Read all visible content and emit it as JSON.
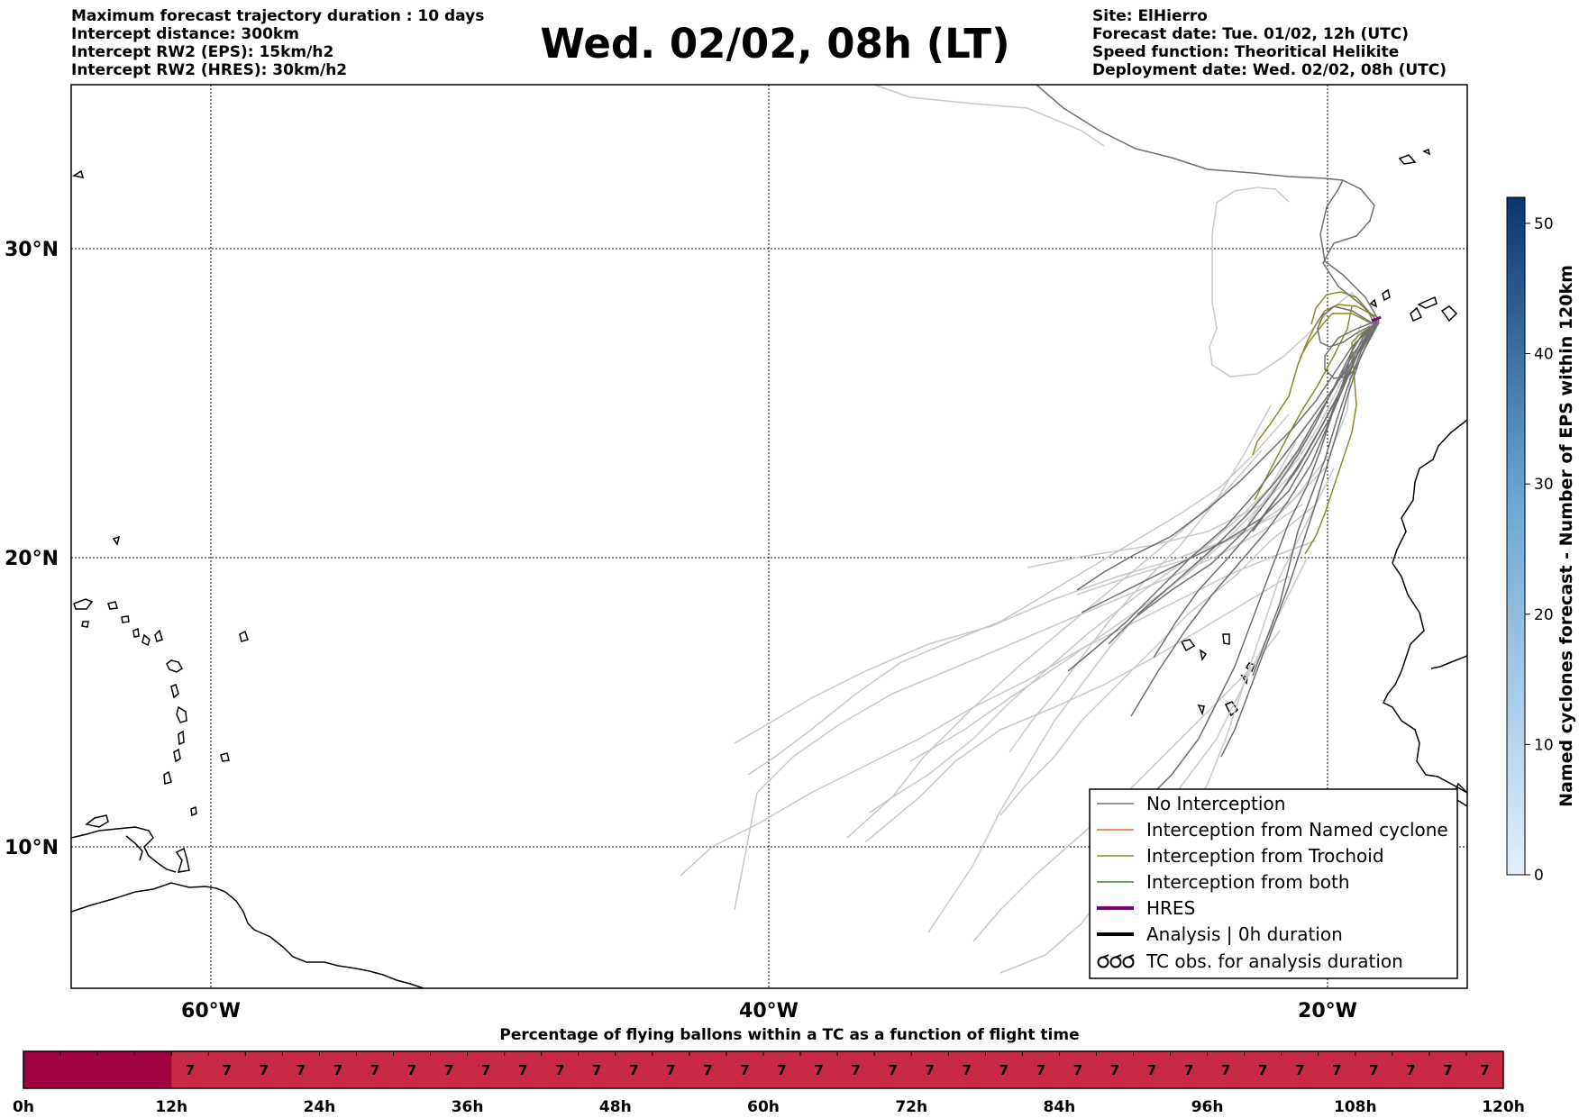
{
  "header": {
    "title": "Wed. 02/02, 08h (LT)",
    "left_lines": [
      "Maximum forecast trajectory duration : 10 days",
      "Intercept distance: 300km",
      "Intercept RW2 (EPS):  15km/h2",
      "Intercept RW2 (HRES): 30km/h2"
    ],
    "right_lines": [
      "Site: ElHierro",
      "Forecast date: Tue. 01/02, 12h (UTC)",
      "Speed function: Theoritical Helikite",
      "Deployment date: Wed. 02/02, 08h (UTC)"
    ]
  },
  "map": {
    "lat_labels": [
      "30°N",
      "20°N",
      "10°N"
    ],
    "lon_labels": [
      "60°W",
      "40°W",
      "20°W"
    ],
    "lon_range": [
      -65,
      -15
    ],
    "lat_range": [
      5,
      34.3
    ],
    "site": {
      "name": "ElHierro",
      "lon": -18.0,
      "lat": 27.7
    }
  },
  "legend": {
    "items": [
      {
        "label": "No Interception",
        "color": "#6e6e6e",
        "style": "thin"
      },
      {
        "label": "Interception from Named cyclone",
        "color": "#e8672e",
        "style": "thin"
      },
      {
        "label": "Interception from Trochoid",
        "color": "#8c8a25",
        "style": "thin"
      },
      {
        "label": "Interception from both",
        "color": "#2e8b2e",
        "style": "thin"
      },
      {
        "label": "HRES",
        "color": "#800080",
        "style": "thick"
      },
      {
        "label": "Analysis | 0h duration",
        "color": "#000000",
        "style": "thick"
      },
      {
        "label": "TC obs. for analysis duration",
        "color": "#000000",
        "style": "symbol"
      }
    ]
  },
  "colorbar": {
    "label": "Named cyclones forecast - Number of EPS within 120km",
    "ticks": [
      "0",
      "10",
      "20",
      "30",
      "40",
      "50"
    ],
    "min": 0,
    "max": 52,
    "color_low": "#e4eef9",
    "color_high": "#0a3670"
  },
  "time_bar": {
    "title": "Percentage of flying ballons within a TC as a function of flight time",
    "labels": [
      "0h",
      "12h",
      "24h",
      "36h",
      "48h",
      "60h",
      "72h",
      "84h",
      "96h",
      "108h",
      "120h"
    ],
    "first_segment_color": "#a10341",
    "segment_color": "#c82a45",
    "cell_value": "7",
    "empty_cells": 4,
    "total_cells": 40
  }
}
